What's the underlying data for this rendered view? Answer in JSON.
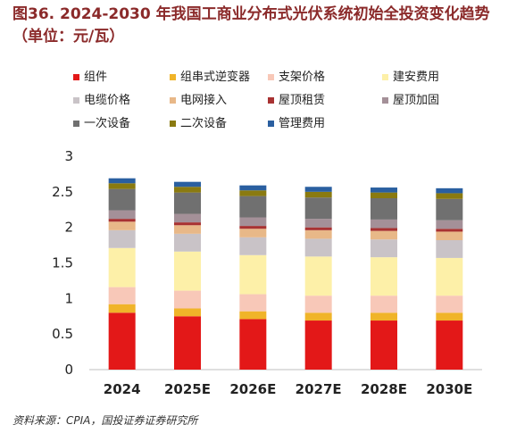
{
  "title": "图36. 2024-2030 年我国工商业分布式光伏系统初始全投资变化趋势（单位：元/瓦）",
  "source": "资料来源：CPIA，国投证券证券研究所",
  "chart_data": {
    "type": "bar",
    "stacked": true,
    "title": "图36. 2024-2030 年我国工商业分布式光伏系统初始全投资变化趋势（单位：元/瓦）",
    "categories": [
      "2024",
      "2025E",
      "2026E",
      "2027E",
      "2028E",
      "2030E"
    ],
    "ylim": [
      0,
      3
    ],
    "yticks": [
      0,
      0.5,
      1,
      1.5,
      2,
      2.5,
      3
    ],
    "ytick_labels": [
      "0",
      "0.5",
      "1",
      "1.5",
      "2",
      "2.5",
      "3"
    ],
    "grid": false,
    "legend_position": "top",
    "series": [
      {
        "name": "组件",
        "color": "#e31818",
        "values": [
          0.8,
          0.75,
          0.71,
          0.69,
          0.69,
          0.69
        ]
      },
      {
        "name": "组串式逆变器",
        "color": "#f0b429",
        "values": [
          0.12,
          0.11,
          0.11,
          0.11,
          0.11,
          0.11
        ]
      },
      {
        "name": "支架价格",
        "color": "#f8c8b8",
        "values": [
          0.24,
          0.25,
          0.24,
          0.24,
          0.24,
          0.24
        ]
      },
      {
        "name": "建安费用",
        "color": "#fdf0a8",
        "values": [
          0.55,
          0.55,
          0.55,
          0.55,
          0.54,
          0.53
        ]
      },
      {
        "name": "电缆价格",
        "color": "#c9c3c7",
        "values": [
          0.25,
          0.25,
          0.25,
          0.25,
          0.25,
          0.25
        ]
      },
      {
        "name": "电网接入",
        "color": "#e8b888",
        "values": [
          0.12,
          0.12,
          0.12,
          0.12,
          0.12,
          0.12
        ]
      },
      {
        "name": "屋顶租赁",
        "color": "#a83232",
        "values": [
          0.04,
          0.04,
          0.04,
          0.04,
          0.04,
          0.04
        ]
      },
      {
        "name": "屋顶加固",
        "color": "#a49098",
        "values": [
          0.12,
          0.12,
          0.12,
          0.12,
          0.12,
          0.12
        ]
      },
      {
        "name": "一次设备",
        "color": "#707070",
        "values": [
          0.3,
          0.3,
          0.3,
          0.3,
          0.3,
          0.3
        ]
      },
      {
        "name": "二次设备",
        "color": "#8a7a10",
        "values": [
          0.08,
          0.08,
          0.08,
          0.08,
          0.08,
          0.08
        ]
      },
      {
        "name": "管理费用",
        "color": "#2a5fa0",
        "values": [
          0.07,
          0.07,
          0.07,
          0.07,
          0.07,
          0.07
        ]
      }
    ]
  }
}
